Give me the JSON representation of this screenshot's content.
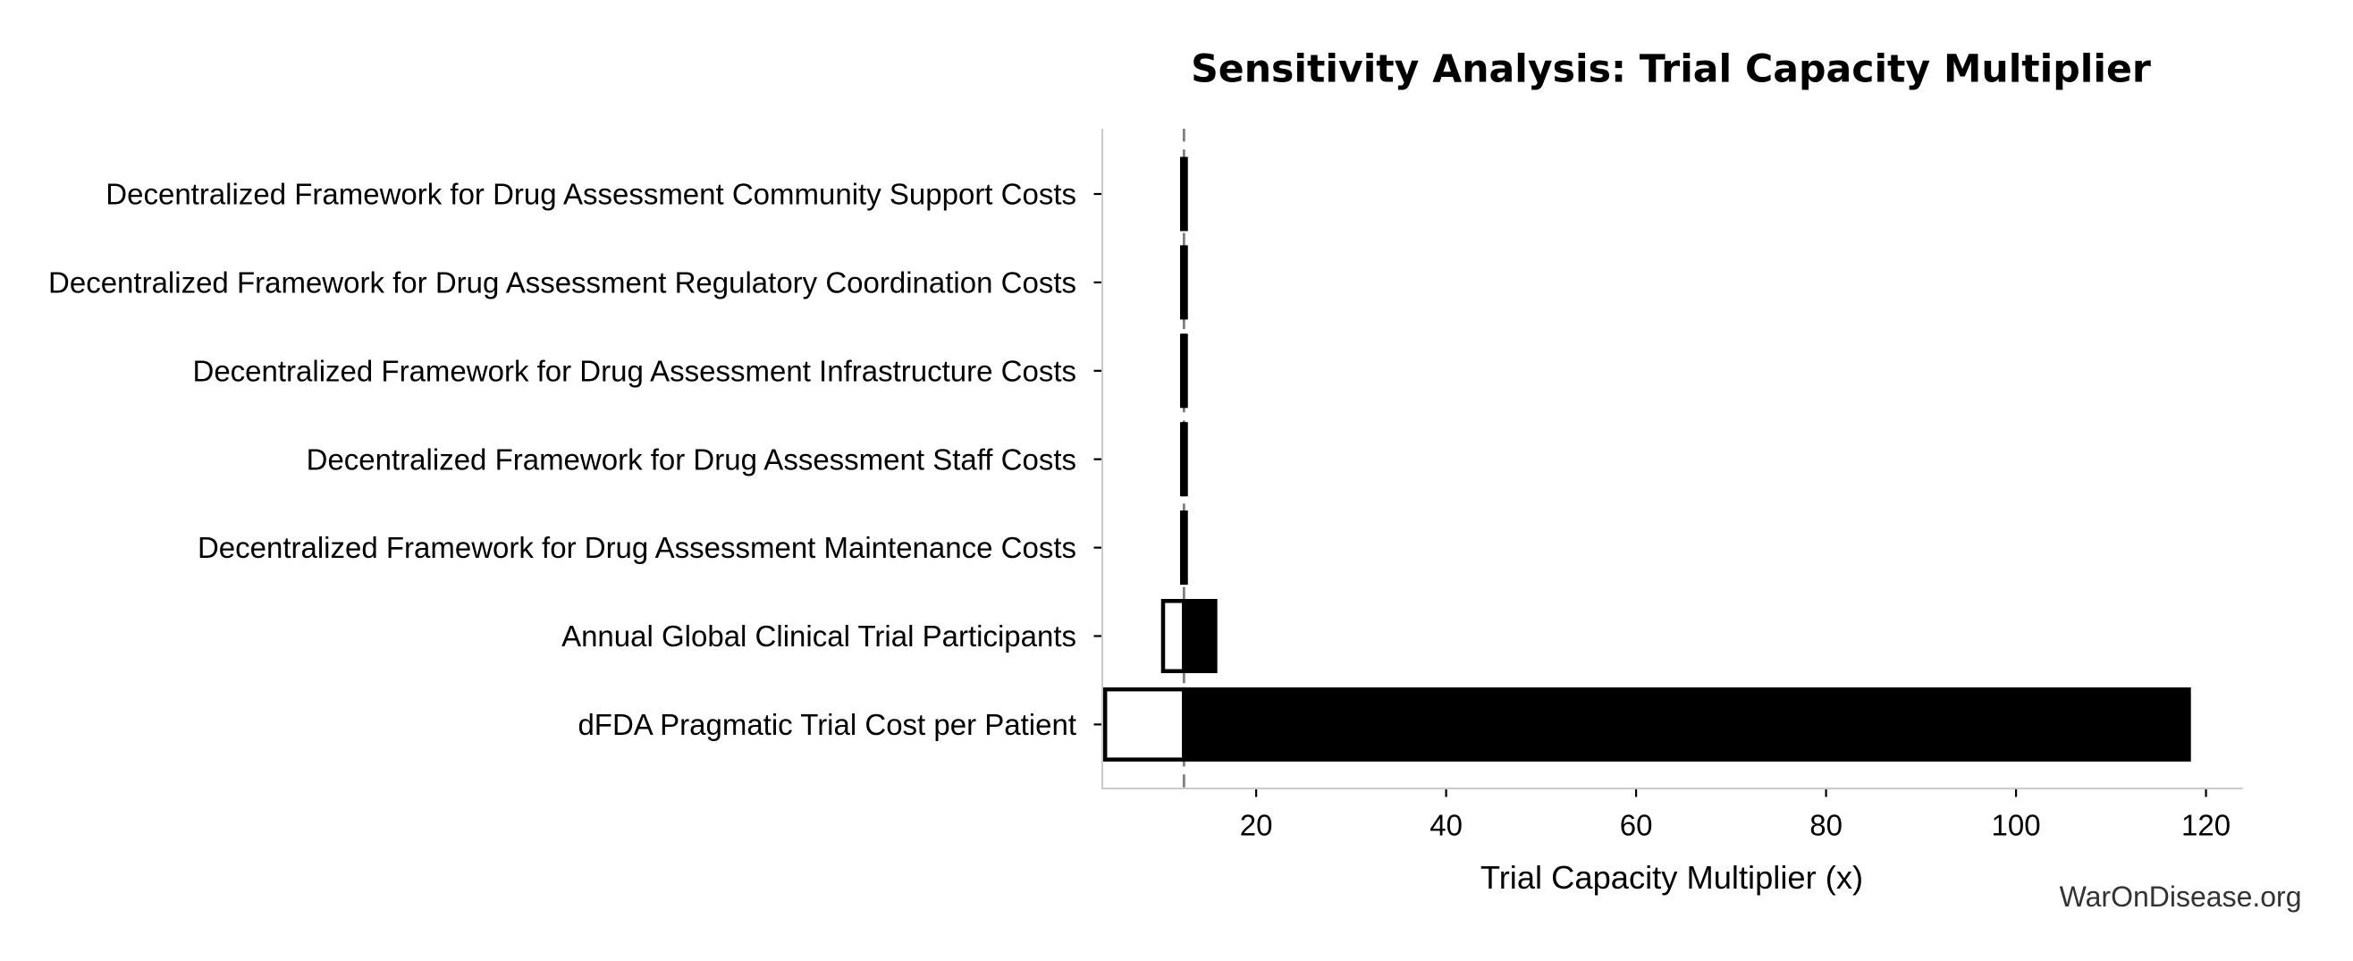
{
  "chart_data": {
    "type": "bar",
    "subtype": "tornado-sensitivity-horizontal",
    "title": "Sensitivity Analysis: Trial Capacity Multiplier",
    "xlabel": "Trial Capacity Multiplier (x)",
    "ylabel": "",
    "watermark": "WarOnDisease.org",
    "baseline": 12.4,
    "categories": [
      "Decentralized Framework for Drug Assessment Community Support Costs",
      "Decentralized Framework for Drug Assessment Regulatory Coordination Costs",
      "Decentralized Framework for Drug Assessment Infrastructure Costs",
      "Decentralized Framework for Drug Assessment Staff Costs",
      "Decentralized Framework for Drug Assessment Maintenance Costs",
      "Annual Global Clinical Trial Participants",
      "dFDA Pragmatic Trial Cost per Patient"
    ],
    "series": [
      {
        "name": "low",
        "values": [
          12.2,
          12.2,
          12.2,
          12.2,
          12.2,
          10.2,
          4.1
        ]
      },
      {
        "name": "high",
        "values": [
          12.6,
          12.6,
          12.6,
          12.6,
          12.6,
          15.7,
          118.2
        ]
      }
    ],
    "xticks": [
      20,
      40,
      60,
      80,
      100,
      120
    ],
    "xlim": [
      3.8,
      123.9
    ],
    "grid": false,
    "legend": null,
    "colors": {
      "high_bar_fill": "#000000",
      "low_bar_fill": "#ffffff",
      "bar_edge": "#000000",
      "baseline_line": "#7f7f7f",
      "spine": "#cccccc",
      "tick": "#000000",
      "text": "#000000",
      "watermark": "#333333",
      "background": "#ffffff"
    }
  }
}
